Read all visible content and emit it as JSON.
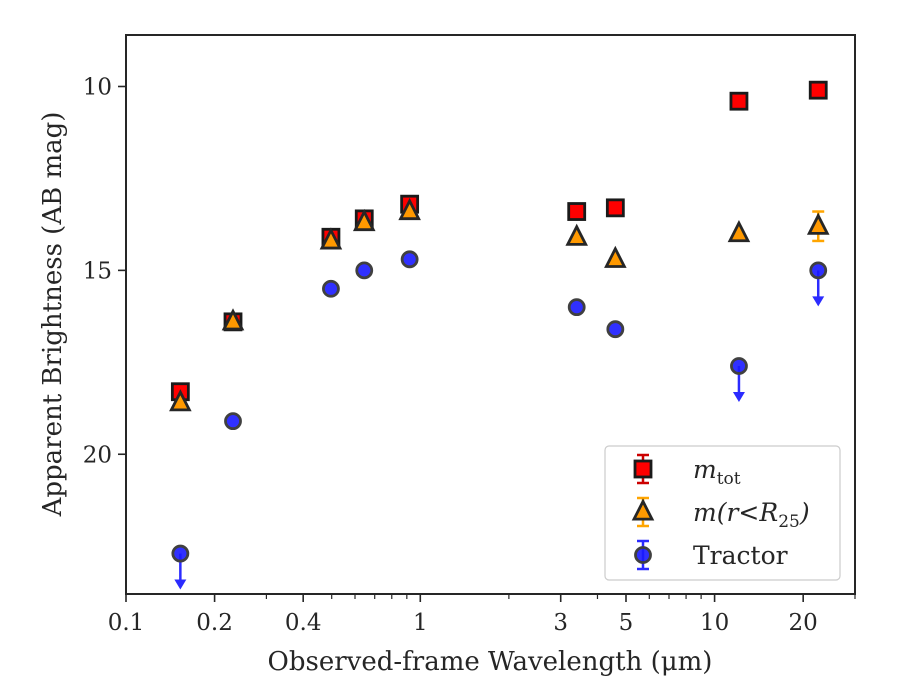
{
  "chart_data": {
    "type": "scatter",
    "xlabel": "Observed-frame Wavelength (μm)",
    "ylabel": "Apparent Brightness (AB mag)",
    "x_scale": "log",
    "xlim": [
      0.1,
      30
    ],
    "ylim": [
      23.8,
      8.6
    ],
    "y_inverted": true,
    "x_ticks": [
      0.1,
      0.2,
      0.4,
      1,
      3,
      5,
      10,
      20
    ],
    "x_tick_labels": [
      "0.1",
      "0.2",
      "0.4",
      "1",
      "3",
      "5",
      "10",
      "20"
    ],
    "y_ticks": [
      10,
      15,
      20
    ],
    "y_tick_labels": [
      "10",
      "15",
      "20"
    ],
    "grid": false,
    "legend_position": "lower right",
    "series": [
      {
        "name": "m_tot",
        "legend_label": {
          "base": "m",
          "sub": "tot"
        },
        "marker": "square",
        "color": "#ff0000",
        "edge_color": "#1a1a1a",
        "error_color": "#cc0000",
        "x": [
          0.153,
          0.231,
          0.497,
          0.645,
          0.92,
          3.4,
          4.6,
          12.1,
          22.5
        ],
        "y": [
          18.3,
          16.4,
          14.1,
          13.6,
          13.2,
          13.4,
          13.3,
          10.4,
          10.1
        ],
        "upper_limit": [
          false,
          false,
          false,
          false,
          false,
          false,
          false,
          false,
          false
        ]
      },
      {
        "name": "m(r<R25)",
        "legend_label": {
          "base": "m(r<R",
          "sub": "25",
          "tail": ")"
        },
        "marker": "triangle",
        "color": "#ff9900",
        "edge_color": "#262626",
        "error_color": "#ffa500",
        "x": [
          0.153,
          0.231,
          0.497,
          0.645,
          0.92,
          3.4,
          4.6,
          12.1,
          22.5
        ],
        "y": [
          18.6,
          16.4,
          14.2,
          13.7,
          13.4,
          14.1,
          14.7,
          14.0,
          13.8
        ],
        "yerr": [
          0,
          0,
          0,
          0,
          0,
          0,
          0,
          0,
          0.4
        ],
        "upper_limit": [
          false,
          false,
          false,
          false,
          false,
          false,
          false,
          false,
          false
        ]
      },
      {
        "name": "Tractor",
        "legend_label": {
          "base": "Tractor"
        },
        "marker": "circle",
        "color": "#1a1aff",
        "edge_color": "#404040",
        "error_color": "#2b2bff",
        "x": [
          0.153,
          0.231,
          0.497,
          0.645,
          0.92,
          3.4,
          4.6,
          12.1,
          22.5
        ],
        "y": [
          22.7,
          19.1,
          15.5,
          15.0,
          14.7,
          16.0,
          16.6,
          17.6,
          15.0
        ],
        "upper_limit": [
          true,
          false,
          false,
          false,
          false,
          false,
          false,
          true,
          true
        ]
      }
    ]
  }
}
